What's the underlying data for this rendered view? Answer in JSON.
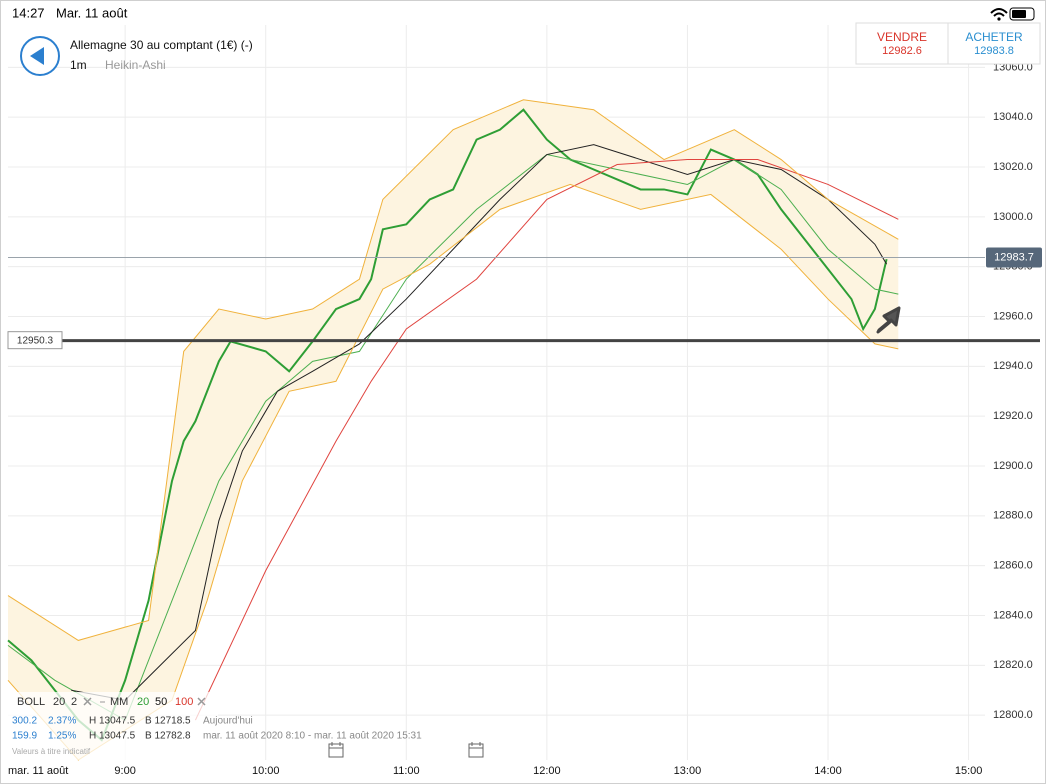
{
  "status_bar": {
    "time": "14:27",
    "date": "Mar. 11 août"
  },
  "header": {
    "instrument": "Allemagne 30 au comptant (1€) (-)",
    "interval": "1m",
    "chart_style": "Heikin-Ashi"
  },
  "quote": {
    "sell_label": "VENDRE",
    "sell_price": "12982.6",
    "buy_label": "ACHETER",
    "buy_price": "12983.8"
  },
  "legend": {
    "boll": [
      "BOLL",
      "20",
      "2"
    ],
    "mm": [
      "MM",
      "20",
      "50",
      "100"
    ],
    "rows": [
      [
        "300.2",
        "2.37%",
        "H 13047.5",
        "B 12718.5",
        "Aujourd'hui"
      ],
      [
        "159.9",
        "1.25%",
        "H 13047.5",
        "B 12782.8",
        "mar. 11 août 2020 8:10 - mar. 11 août 2020 15:31"
      ]
    ],
    "note": "Valeurs à titre indicatif"
  },
  "chart_data": {
    "type": "line",
    "xlim": [
      490,
      907
    ],
    "ylim": [
      12782,
      13077
    ],
    "grid": true,
    "xticks": [
      {
        "value": 490,
        "label": "mar. 11 août"
      },
      {
        "value": 540,
        "label": "9:00"
      },
      {
        "value": 600,
        "label": "10:00"
      },
      {
        "value": 660,
        "label": "11:00"
      },
      {
        "value": 720,
        "label": "12:00"
      },
      {
        "value": 780,
        "label": "13:00"
      },
      {
        "value": 840,
        "label": "14:00"
      },
      {
        "value": 900,
        "label": "15:00"
      }
    ],
    "yticks": [
      {
        "value": 12800,
        "label": "12800.0"
      },
      {
        "value": 12820,
        "label": "12820.0"
      },
      {
        "value": 12840,
        "label": "12840.0"
      },
      {
        "value": 12860,
        "label": "12860.0"
      },
      {
        "value": 12880,
        "label": "12880.0"
      },
      {
        "value": 12900,
        "label": "12900.0"
      },
      {
        "value": 12920,
        "label": "12920.0"
      },
      {
        "value": 12940,
        "label": "12940.0"
      },
      {
        "value": 12960,
        "label": "12960.0"
      },
      {
        "value": 12980,
        "label": "12980.0"
      },
      {
        "value": 13000,
        "label": "13000.0"
      },
      {
        "value": 13020,
        "label": "13020.0"
      },
      {
        "value": 13040,
        "label": "13040.0"
      },
      {
        "value": 13060,
        "label": "13060.0"
      }
    ],
    "fill_between": [
      4,
      5
    ],
    "fill_color": "#fdf4e0",
    "series": [
      {
        "color": "#2e9e35",
        "width": 2,
        "x": [
          490,
          500,
          510,
          520,
          530,
          540,
          545,
          550,
          555,
          560,
          565,
          570,
          580,
          585,
          600,
          610,
          620,
          630,
          640,
          645,
          650,
          660,
          670,
          680,
          690,
          700,
          710,
          720,
          730,
          740,
          750,
          760,
          770,
          780,
          790,
          800,
          810,
          820,
          830,
          840,
          850,
          855,
          860,
          865
        ],
        "values": [
          12830,
          12822,
          12810,
          12798,
          12790,
          12814,
          12830,
          12846,
          12870,
          12894,
          12910,
          12918,
          12942,
          12950,
          12946,
          12938,
          12950,
          12963,
          12967,
          12975,
          12995,
          12997,
          13007,
          13011,
          13031,
          13035,
          13043,
          13031,
          13023,
          13019,
          13015,
          13011,
          13011,
          13009,
          13027,
          13023,
          13017,
          13003,
          12991,
          12979,
          12967,
          12955,
          12963,
          12983
        ]
      },
      {
        "color": "#4caf50",
        "width": 1,
        "x": [
          490,
          510,
          540,
          560,
          580,
          600,
          620,
          640,
          660,
          690,
          720,
          750,
          780,
          800,
          820,
          840,
          860,
          870
        ],
        "values": [
          12828,
          12814,
          12798,
          12846,
          12894,
          12926,
          12942,
          12946,
          12975,
          13003,
          13025,
          13019,
          13013,
          13023,
          13011,
          12987,
          12971,
          12969
        ]
      },
      {
        "color": "#222222",
        "width": 1,
        "x": [
          517,
          540,
          570,
          580,
          590,
          600,
          605,
          620,
          640,
          660,
          680,
          700,
          720,
          740,
          760,
          780,
          800,
          820,
          840,
          860,
          865
        ],
        "values": [
          12810,
          12806,
          12834,
          12878,
          12906,
          12922,
          12930,
          12938,
          12949,
          12967,
          12987,
          13007,
          13025,
          13029,
          13023,
          13017,
          13023,
          13019,
          13007,
          12989,
          12981
        ]
      },
      {
        "color": "#e0443f",
        "width": 1,
        "x": [
          570,
          600,
          630,
          645,
          660,
          690,
          720,
          750,
          780,
          810,
          840,
          870
        ],
        "values": [
          12798,
          12858,
          12910,
          12934,
          12955,
          12975,
          13007,
          13021,
          13023,
          13023,
          13013,
          12999
        ]
      },
      {
        "color": "#f0b23c",
        "width": 1,
        "x": [
          490,
          520,
          550,
          565,
          580,
          600,
          620,
          640,
          650,
          680,
          710,
          740,
          770,
          800,
          820,
          840,
          870
        ],
        "values": [
          12848,
          12830,
          12838,
          12946,
          12963,
          12959,
          12963,
          12975,
          13007,
          13035,
          13047,
          13043,
          13023,
          13035,
          13023,
          13007,
          12991
        ]
      },
      {
        "color": "#f0b23c",
        "width": 1,
        "x": [
          490,
          520,
          560,
          575,
          590,
          610,
          630,
          650,
          670,
          700,
          730,
          760,
          790,
          820,
          840,
          860,
          870
        ],
        "values": [
          12814,
          12782,
          12806,
          12846,
          12894,
          12930,
          12934,
          12971,
          12981,
          13003,
          13013,
          13003,
          13009,
          12987,
          12967,
          12949,
          12947
        ]
      }
    ],
    "price_lines": [
      {
        "value": 12983.7,
        "style": "thin"
      },
      {
        "value": 12950.3,
        "style": "thick"
      }
    ]
  }
}
